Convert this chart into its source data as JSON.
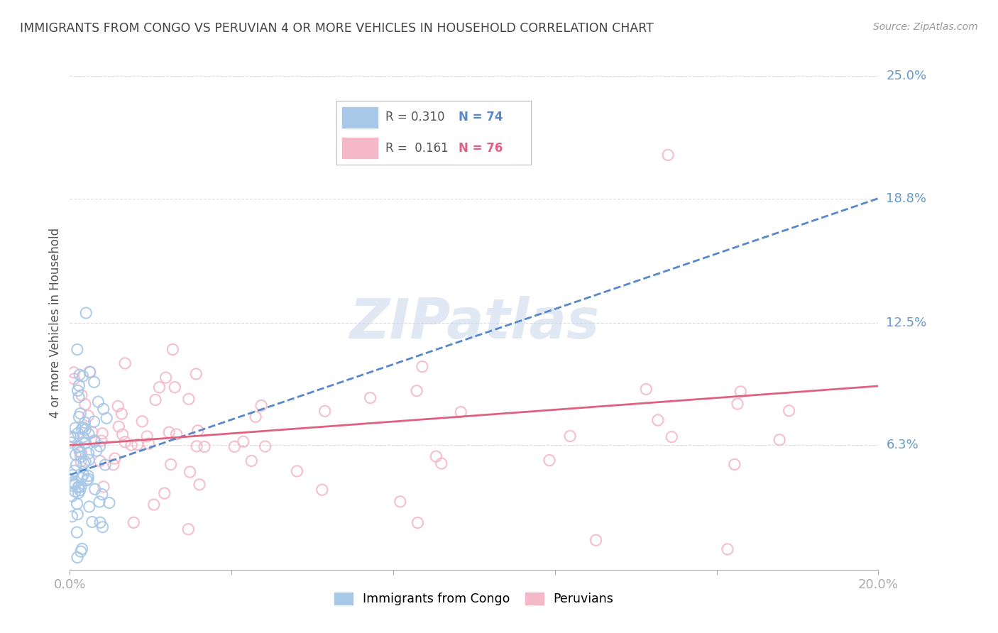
{
  "title": "IMMIGRANTS FROM CONGO VS PERUVIAN 4 OR MORE VEHICLES IN HOUSEHOLD CORRELATION CHART",
  "source": "Source: ZipAtlas.com",
  "ylabel": "4 or more Vehicles in Household",
  "x_min": 0.0,
  "x_max": 0.2,
  "y_min": 0.0,
  "y_max": 0.25,
  "y_tick_labels": [
    "25.0%",
    "18.8%",
    "12.5%",
    "6.3%"
  ],
  "y_tick_values": [
    0.25,
    0.188,
    0.125,
    0.063
  ],
  "congo_r": "0.310",
  "congo_n": "74",
  "peru_r": "0.161",
  "peru_n": "76",
  "congo_dot_color": "#a8c8e8",
  "peru_dot_color": "#f5b8c8",
  "congo_line_color": "#5588cc",
  "peru_line_color": "#e06080",
  "grid_color": "#dddddd",
  "background_color": "#ffffff",
  "title_color": "#444444",
  "axis_label_color": "#6699cc",
  "watermark": "ZIPatlas",
  "congo_line_x0": 0.0,
  "congo_line_x1": 0.2,
  "congo_line_y0": 0.048,
  "congo_line_y1": 0.188,
  "peru_line_x0": 0.0,
  "peru_line_x1": 0.2,
  "peru_line_y0": 0.063,
  "peru_line_y1": 0.093
}
